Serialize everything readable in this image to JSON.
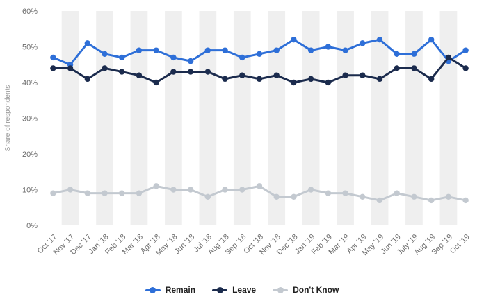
{
  "chart_data": {
    "type": "line",
    "title": "",
    "xlabel": "",
    "ylabel": "Share of respondents",
    "ylim": [
      0,
      60
    ],
    "yticks": [
      0,
      10,
      20,
      30,
      40,
      50,
      60
    ],
    "ytick_suffix": "%",
    "grid": "vertical-stripes",
    "legend_position": "bottom",
    "stripe_color": "#efefef",
    "categories": [
      "Oct '17",
      "Nov '17",
      "Dec '17",
      "Jan '18",
      "Feb '18",
      "Mar '18",
      "Apr '18",
      "May '18",
      "Jun '18",
      "Jul '18",
      "Aug '18",
      "Sep '18",
      "Oct '18",
      "Nov '18",
      "Dec '18",
      "Jan '19",
      "Feb '19",
      "Mar '19",
      "Apr '19",
      "May '19",
      "Jun '19",
      "July '19",
      "Aug '19",
      "Sep '19",
      "Oct '19"
    ],
    "series": [
      {
        "name": "Remain",
        "color": "#2e6fd8",
        "values": [
          47,
          45,
          51,
          48,
          47,
          49,
          49,
          47,
          46,
          49,
          49,
          47,
          48,
          49,
          52,
          49,
          50,
          49,
          51,
          52,
          48,
          48,
          52,
          46,
          49
        ]
      },
      {
        "name": "Leave",
        "color": "#1b2b4d",
        "values": [
          44,
          44,
          41,
          44,
          43,
          42,
          40,
          43,
          43,
          43,
          41,
          42,
          41,
          42,
          40,
          41,
          40,
          42,
          42,
          41,
          44,
          44,
          41,
          47,
          44
        ]
      },
      {
        "name": "Don't Know",
        "color": "#c3c9d0",
        "values": [
          9,
          10,
          9,
          9,
          9,
          9,
          11,
          10,
          10,
          8,
          10,
          10,
          11,
          8,
          8,
          10,
          9,
          9,
          8,
          7,
          9,
          8,
          7,
          8,
          7
        ]
      }
    ]
  }
}
